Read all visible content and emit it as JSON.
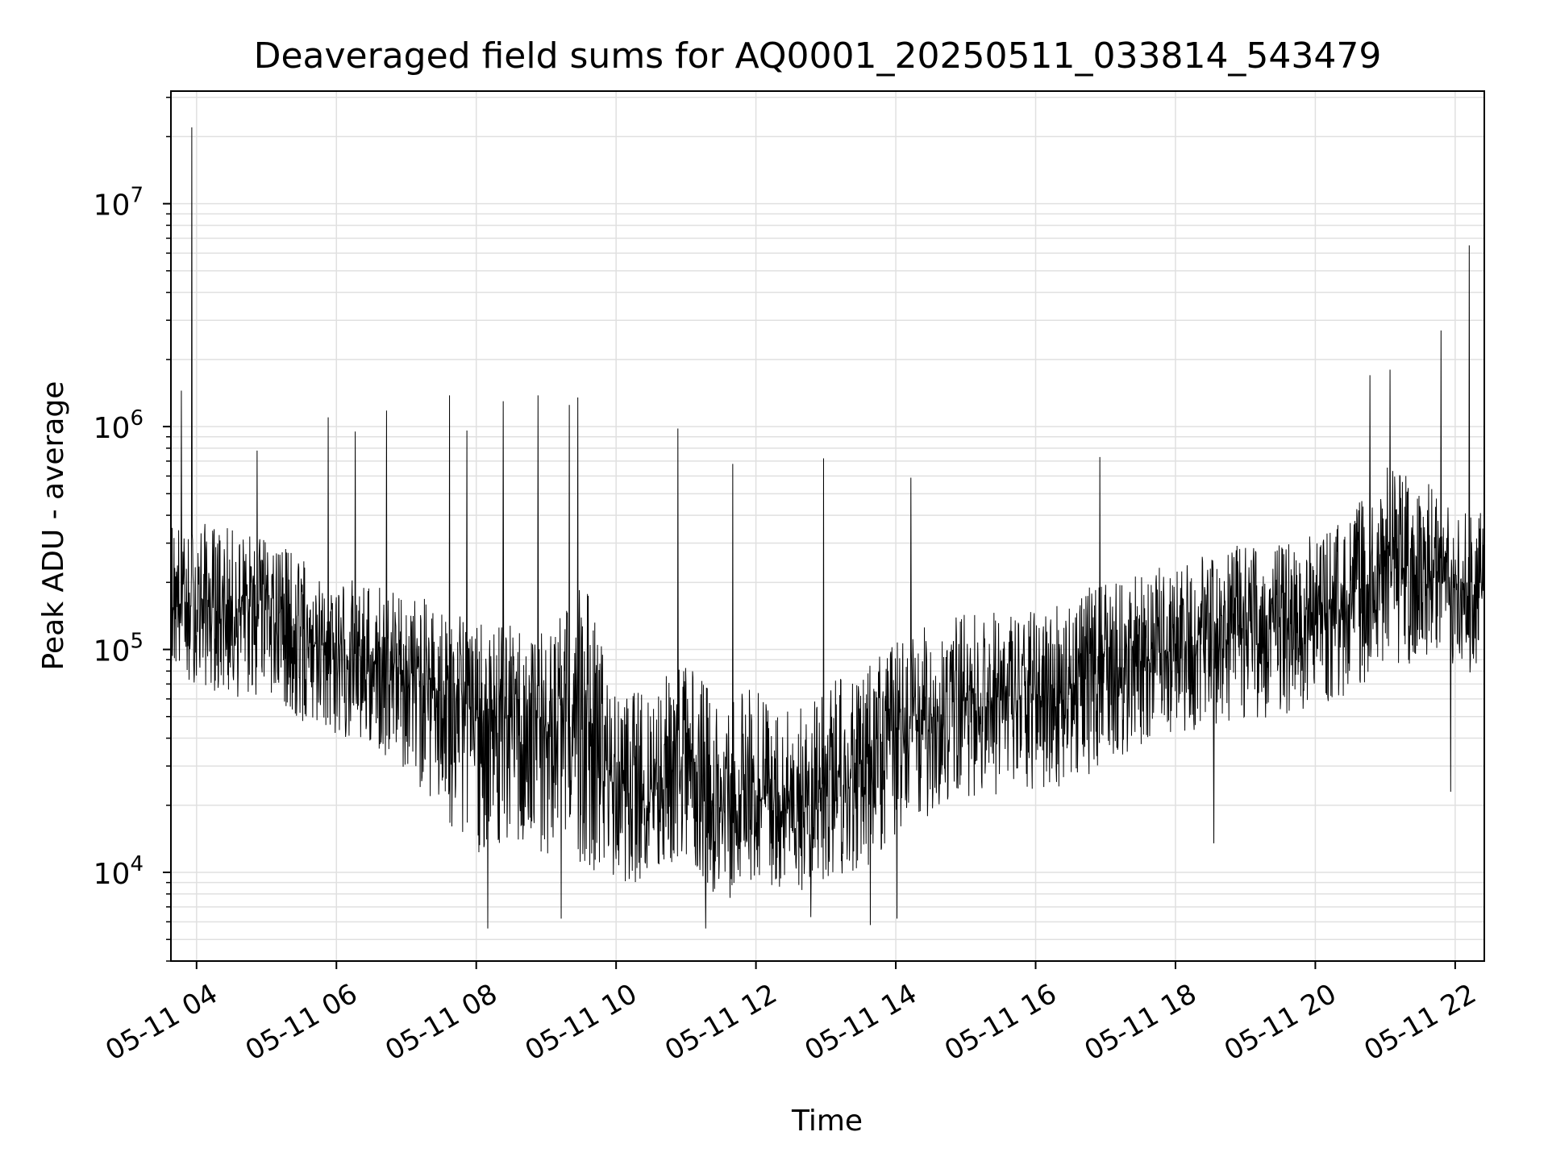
{
  "chart_data": {
    "type": "line",
    "title": "Deaveraged field sums for AQ0001_20250511_033814_543479",
    "xlabel": "Time",
    "ylabel": "Peak ADU - average",
    "yscale": "log",
    "ylim": [
      4000,
      32000000
    ],
    "xlim": [
      "2025-05-11 03:38",
      "2025-05-11 22:25"
    ],
    "grid": true,
    "line_color": "#000000",
    "grid_color": "#e0e0e0",
    "x_ticks": [
      {
        "t": "2025-05-11 04:00",
        "label": "05-11 04"
      },
      {
        "t": "2025-05-11 06:00",
        "label": "05-11 06"
      },
      {
        "t": "2025-05-11 08:00",
        "label": "05-11 08"
      },
      {
        "t": "2025-05-11 10:00",
        "label": "05-11 10"
      },
      {
        "t": "2025-05-11 12:00",
        "label": "05-11 12"
      },
      {
        "t": "2025-05-11 14:00",
        "label": "05-11 14"
      },
      {
        "t": "2025-05-11 16:00",
        "label": "05-11 16"
      },
      {
        "t": "2025-05-11 18:00",
        "label": "05-11 18"
      },
      {
        "t": "2025-05-11 20:00",
        "label": "05-11 20"
      },
      {
        "t": "2025-05-11 22:00",
        "label": "05-11 22"
      }
    ],
    "y_ticks": [
      {
        "value": 10000,
        "base": "10",
        "exp": "4"
      },
      {
        "value": 100000,
        "base": "10",
        "exp": "5"
      },
      {
        "value": 1000000,
        "base": "10",
        "exp": "6"
      },
      {
        "value": 10000000,
        "base": "10",
        "exp": "7"
      }
    ],
    "series": [
      {
        "x": [
          "2025-05-11 03:38",
          "2025-05-11 04:00",
          "2025-05-11 04:30",
          "2025-05-11 05:00",
          "2025-05-11 05:30",
          "2025-05-11 06:00",
          "2025-05-11 06:30",
          "2025-05-11 07:00",
          "2025-05-11 07:30",
          "2025-05-11 08:00",
          "2025-05-11 08:30",
          "2025-05-11 09:00",
          "2025-05-11 09:30",
          "2025-05-11 10:00",
          "2025-05-11 10:30",
          "2025-05-11 11:00",
          "2025-05-11 11:30",
          "2025-05-11 12:00",
          "2025-05-11 12:30",
          "2025-05-11 13:00",
          "2025-05-11 13:30",
          "2025-05-11 14:00",
          "2025-05-11 14:30",
          "2025-05-11 15:00",
          "2025-05-11 15:30",
          "2025-05-11 16:00",
          "2025-05-11 16:30",
          "2025-05-11 17:00",
          "2025-05-11 17:30",
          "2025-05-11 18:00",
          "2025-05-11 18:30",
          "2025-05-11 19:00",
          "2025-05-11 19:30",
          "2025-05-11 20:00",
          "2025-05-11 20:30",
          "2025-05-11 21:00",
          "2025-05-11 21:30",
          "2025-05-11 22:00",
          "2025-05-11 22:25"
        ],
        "typical": [
          170000,
          160000,
          150000,
          150000,
          110000,
          100000,
          90000,
          80000,
          65000,
          50000,
          50000,
          45000,
          55000,
          25000,
          25000,
          35000,
          18000,
          22000,
          20000,
          25000,
          30000,
          40000,
          50000,
          60000,
          60000,
          60000,
          70000,
          80000,
          90000,
          100000,
          110000,
          120000,
          130000,
          140000,
          160000,
          250000,
          220000,
          180000,
          200000
        ],
        "low": [
          80000,
          70000,
          60000,
          60000,
          45000,
          40000,
          35000,
          28000,
          18000,
          12000,
          13000,
          12000,
          11000,
          9000,
          9000,
          12000,
          7000,
          9000,
          8000,
          9000,
          10000,
          14000,
          18000,
          22000,
          22000,
          22000,
          25000,
          30000,
          35000,
          40000,
          45000,
          48000,
          50000,
          55000,
          60000,
          90000,
          80000,
          70000,
          80000
        ],
        "high": [
          400000,
          380000,
          350000,
          320000,
          260000,
          220000,
          200000,
          180000,
          160000,
          130000,
          130000,
          120000,
          250000,
          60000,
          70000,
          90000,
          60000,
          70000,
          55000,
          70000,
          80000,
          110000,
          130000,
          150000,
          150000,
          150000,
          180000,
          200000,
          220000,
          250000,
          270000,
          300000,
          300000,
          330000,
          400000,
          700000,
          600000,
          450000,
          500000
        ],
        "spikes": [
          {
            "t": "2025-05-11 03:47",
            "v": 1450000
          },
          {
            "t": "2025-05-11 03:56",
            "v": 22000000
          },
          {
            "t": "2025-05-11 04:52",
            "v": 780000
          },
          {
            "t": "2025-05-11 05:53",
            "v": 1100000
          },
          {
            "t": "2025-05-11 06:16",
            "v": 950000
          },
          {
            "t": "2025-05-11 06:43",
            "v": 1180000
          },
          {
            "t": "2025-05-11 07:37",
            "v": 1380000
          },
          {
            "t": "2025-05-11 07:52",
            "v": 960000
          },
          {
            "t": "2025-05-11 08:23",
            "v": 1300000
          },
          {
            "t": "2025-05-11 08:53",
            "v": 1380000
          },
          {
            "t": "2025-05-11 09:20",
            "v": 1250000
          },
          {
            "t": "2025-05-11 09:27",
            "v": 1350000
          },
          {
            "t": "2025-05-11 10:53",
            "v": 980000
          },
          {
            "t": "2025-05-11 11:40",
            "v": 680000
          },
          {
            "t": "2025-05-11 12:58",
            "v": 720000
          },
          {
            "t": "2025-05-11 14:13",
            "v": 590000
          },
          {
            "t": "2025-05-11 16:55",
            "v": 730000
          },
          {
            "t": "2025-05-11 20:47",
            "v": 1700000
          },
          {
            "t": "2025-05-11 21:04",
            "v": 1800000
          },
          {
            "t": "2025-05-11 21:48",
            "v": 2700000
          },
          {
            "t": "2025-05-11 22:12",
            "v": 6500000
          }
        ],
        "dips": [
          {
            "t": "2025-05-11 08:10",
            "v": 5600
          },
          {
            "t": "2025-05-11 09:13",
            "v": 6200
          },
          {
            "t": "2025-05-11 11:17",
            "v": 5600
          },
          {
            "t": "2025-05-11 12:47",
            "v": 6300
          },
          {
            "t": "2025-05-11 13:38",
            "v": 5800
          },
          {
            "t": "2025-05-11 14:01",
            "v": 6200
          },
          {
            "t": "2025-05-11 18:33",
            "v": 13500
          },
          {
            "t": "2025-05-11 21:56",
            "v": 23000
          }
        ]
      }
    ]
  }
}
